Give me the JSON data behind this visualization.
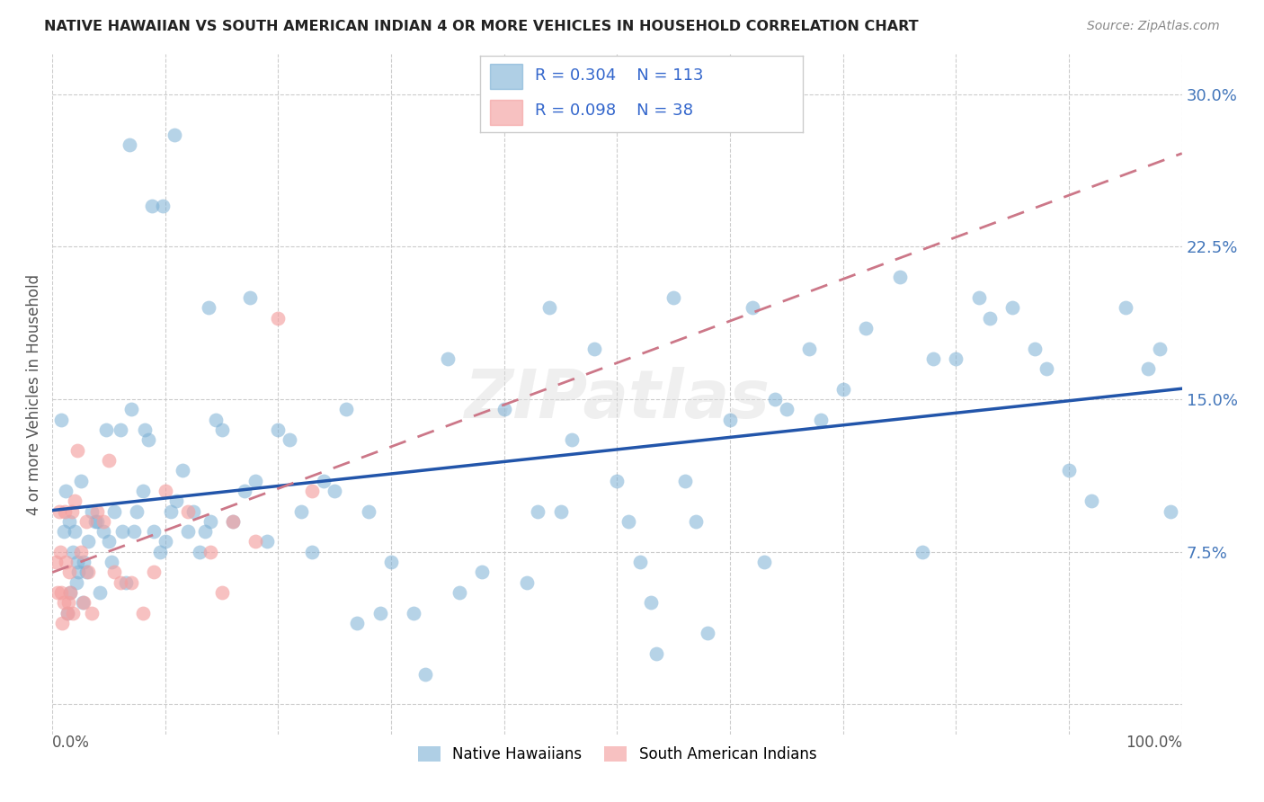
{
  "title": "NATIVE HAWAIIAN VS SOUTH AMERICAN INDIAN 4 OR MORE VEHICLES IN HOUSEHOLD CORRELATION CHART",
  "source": "Source: ZipAtlas.com",
  "ylabel": "4 or more Vehicles in Household",
  "legend1_r": "0.304",
  "legend1_n": "113",
  "legend2_r": "0.098",
  "legend2_n": "38",
  "legend_label1": "Native Hawaiians",
  "legend_label2": "South American Indians",
  "blue_color": "#7BAFD4",
  "pink_color": "#F4A0A0",
  "blue_line_color": "#2255AA",
  "pink_line_color": "#CC7788",
  "watermark": "ZIPatlas",
  "blue_x": [
    1.2,
    1.5,
    1.8,
    2.0,
    2.1,
    2.2,
    2.3,
    2.5,
    2.7,
    3.0,
    3.2,
    3.5,
    4.0,
    4.2,
    4.5,
    4.8,
    5.0,
    5.2,
    5.5,
    6.0,
    6.2,
    6.5,
    7.0,
    7.2,
    7.5,
    8.0,
    8.2,
    8.5,
    9.0,
    9.5,
    10.0,
    10.5,
    11.0,
    11.5,
    12.0,
    12.5,
    13.0,
    13.5,
    14.0,
    14.5,
    15.0,
    16.0,
    17.0,
    18.0,
    19.0,
    20.0,
    21.0,
    22.0,
    23.0,
    24.0,
    25.0,
    26.0,
    27.0,
    28.0,
    29.0,
    30.0,
    32.0,
    33.0,
    35.0,
    36.0,
    38.0,
    40.0,
    42.0,
    43.0,
    45.0,
    46.0,
    48.0,
    50.0,
    51.0,
    52.0,
    53.0,
    55.0,
    56.0,
    57.0,
    58.0,
    60.0,
    62.0,
    63.0,
    65.0,
    67.0,
    68.0,
    70.0,
    72.0,
    75.0,
    77.0,
    78.0,
    80.0,
    82.0,
    83.0,
    85.0,
    87.0,
    88.0,
    90.0,
    92.0,
    95.0,
    97.0,
    98.0,
    99.0,
    0.8,
    1.0,
    1.3,
    1.6,
    2.8,
    3.8,
    6.8,
    8.8,
    9.8,
    10.8,
    13.8,
    17.5,
    44.0,
    53.5,
    64.0
  ],
  "blue_y": [
    10.5,
    9.0,
    7.5,
    8.5,
    6.0,
    7.0,
    6.5,
    11.0,
    5.0,
    6.5,
    8.0,
    9.5,
    9.0,
    5.5,
    8.5,
    13.5,
    8.0,
    7.0,
    9.5,
    13.5,
    8.5,
    6.0,
    14.5,
    8.5,
    9.5,
    10.5,
    13.5,
    13.0,
    8.5,
    7.5,
    8.0,
    9.5,
    10.0,
    11.5,
    8.5,
    9.5,
    7.5,
    8.5,
    9.0,
    14.0,
    13.5,
    9.0,
    10.5,
    11.0,
    8.0,
    13.5,
    13.0,
    9.5,
    7.5,
    11.0,
    10.5,
    14.5,
    4.0,
    9.5,
    4.5,
    7.0,
    4.5,
    1.5,
    17.0,
    5.5,
    6.5,
    14.5,
    6.0,
    9.5,
    9.5,
    13.0,
    17.5,
    11.0,
    9.0,
    7.0,
    5.0,
    20.0,
    11.0,
    9.0,
    3.5,
    14.0,
    19.5,
    7.0,
    14.5,
    17.5,
    14.0,
    15.5,
    18.5,
    21.0,
    7.5,
    17.0,
    17.0,
    20.0,
    19.0,
    19.5,
    17.5,
    16.5,
    11.5,
    10.0,
    19.5,
    16.5,
    17.5,
    9.5,
    14.0,
    8.5,
    4.5,
    5.5,
    7.0,
    9.0,
    27.5,
    24.5,
    24.5,
    28.0,
    19.5,
    20.0,
    19.5,
    2.5,
    15.0
  ],
  "pink_x": [
    0.3,
    0.5,
    0.6,
    0.7,
    0.8,
    0.9,
    1.0,
    1.1,
    1.2,
    1.3,
    1.4,
    1.5,
    1.6,
    1.7,
    1.8,
    2.0,
    2.2,
    2.5,
    2.8,
    3.0,
    3.2,
    3.5,
    4.0,
    4.5,
    5.0,
    5.5,
    6.0,
    7.0,
    8.0,
    9.0,
    10.0,
    12.0,
    14.0,
    15.0,
    16.0,
    18.0,
    20.0,
    23.0
  ],
  "pink_y": [
    7.0,
    5.5,
    9.5,
    7.5,
    5.5,
    4.0,
    5.0,
    9.5,
    7.0,
    4.5,
    5.0,
    6.5,
    5.5,
    9.5,
    4.5,
    10.0,
    12.5,
    7.5,
    5.0,
    9.0,
    6.5,
    4.5,
    9.5,
    9.0,
    12.0,
    6.5,
    6.0,
    6.0,
    4.5,
    6.5,
    10.5,
    9.5,
    7.5,
    5.5,
    9.0,
    8.0,
    19.0,
    10.5
  ]
}
